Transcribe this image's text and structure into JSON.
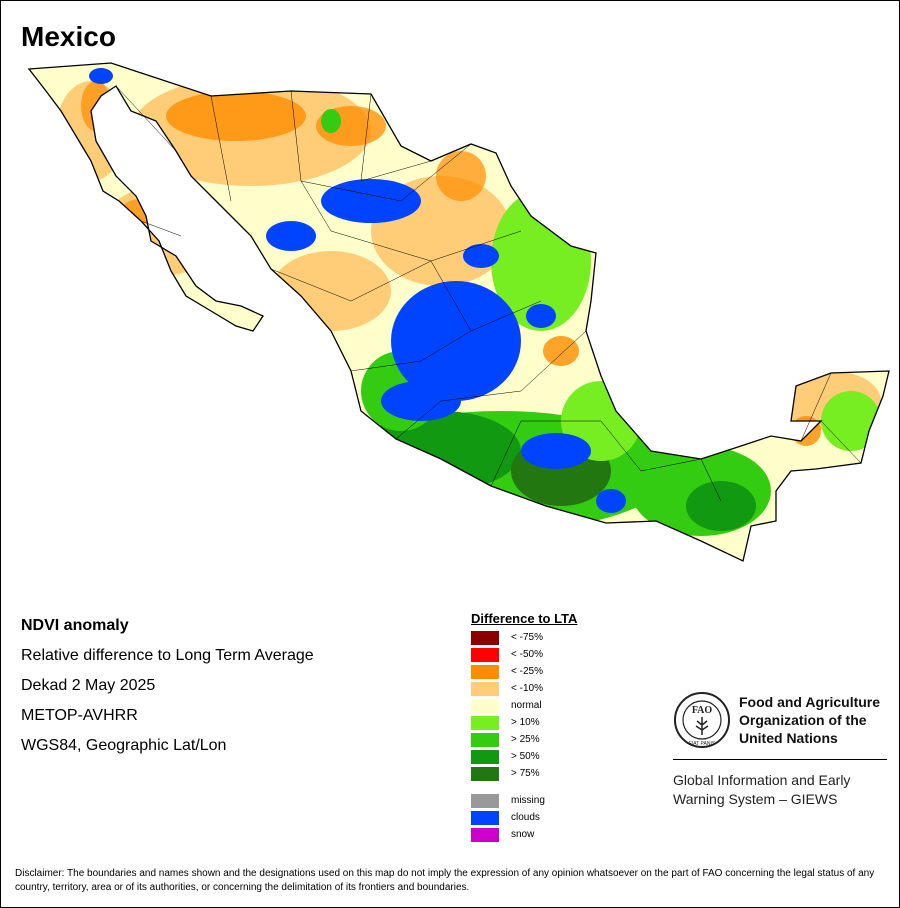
{
  "title": "Mexico",
  "info": {
    "product": "NDVI anomaly",
    "description": "Relative difference to Long Term Average",
    "period": "Dekad 2 May 2025",
    "sensor": "METOP-AVHRR",
    "projection": "WGS84, Geographic Lat/Lon"
  },
  "legend": {
    "title": "Difference to LTA",
    "classes": [
      {
        "label": "< -75%",
        "color": "#8b0000"
      },
      {
        "label": "< -50%",
        "color": "#ff0000"
      },
      {
        "label": "< -25%",
        "color": "#ff8c00"
      },
      {
        "label": "< -10%",
        "color": "#ffcc77"
      },
      {
        "label": "normal",
        "color": "#ffffcc"
      },
      {
        "label": "> 10%",
        "color": "#77ee22"
      },
      {
        "label": "> 25%",
        "color": "#33cc11"
      },
      {
        "label": "> 50%",
        "color": "#119911"
      },
      {
        "label": "> 75%",
        "color": "#227711"
      }
    ],
    "other": [
      {
        "label": "missing",
        "color": "#999999"
      },
      {
        "label": "clouds",
        "color": "#0044ff"
      },
      {
        "label": "snow",
        "color": "#cc00cc"
      }
    ]
  },
  "fao": {
    "name": "Food and Agriculture Organization of the United Nations",
    "giews": "Global Information and Early Warning System – GIEWS",
    "logo_letters": "FAO",
    "logo_motto": "FIAT PANIS"
  },
  "disclaimer": "Disclaimer: The boundaries and names shown and the designations used on this map do not imply the expression of any opinion whatsoever on the part of FAO concerning the legal status of any country, territory, area or of its authorities, or concerning the delimitation of its frontiers and boundaries."
}
